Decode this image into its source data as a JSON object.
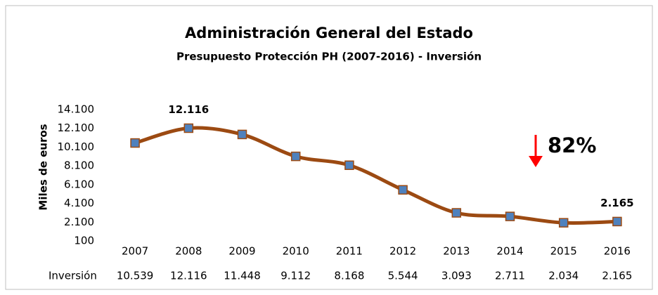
{
  "chart_data": {
    "type": "line",
    "title": "Administración General del Estado",
    "subtitle": "Presupuesto Protección PH (2007-2016) - Inversión",
    "y_label": "Miles de euros",
    "categories": [
      "2007",
      "2008",
      "2009",
      "2010",
      "2011",
      "2012",
      "2013",
      "2014",
      "2015",
      "2016"
    ],
    "series": [
      {
        "name": "Inversión",
        "color": "#9c4a12",
        "marker_color": "#4f81bd",
        "values": [
          10539,
          12116,
          11448,
          9112,
          8168,
          5544,
          3093,
          2711,
          2034,
          2165
        ],
        "value_labels": [
          "10.539",
          "12.116",
          "11.448",
          "9.112",
          "8.168",
          "5.544",
          "3.093",
          "2.711",
          "2.034",
          "2.165"
        ]
      }
    ],
    "data_labels_at": [
      "2008",
      "2016"
    ],
    "ylim": [
      100,
      14100
    ],
    "yticks": [
      {
        "value": 100,
        "label": "100"
      },
      {
        "value": 2100,
        "label": "2.100"
      },
      {
        "value": 4100,
        "label": "4.100"
      },
      {
        "value": 6100,
        "label": "6.100"
      },
      {
        "value": 8100,
        "label": "8.100"
      },
      {
        "value": 10100,
        "label": "10.100"
      },
      {
        "value": 12100,
        "label": "12.100"
      },
      {
        "value": 14100,
        "label": "14.100"
      }
    ],
    "smooth": true,
    "grid": false,
    "annotation": {
      "text": "82%",
      "color": "#ff0000"
    }
  }
}
